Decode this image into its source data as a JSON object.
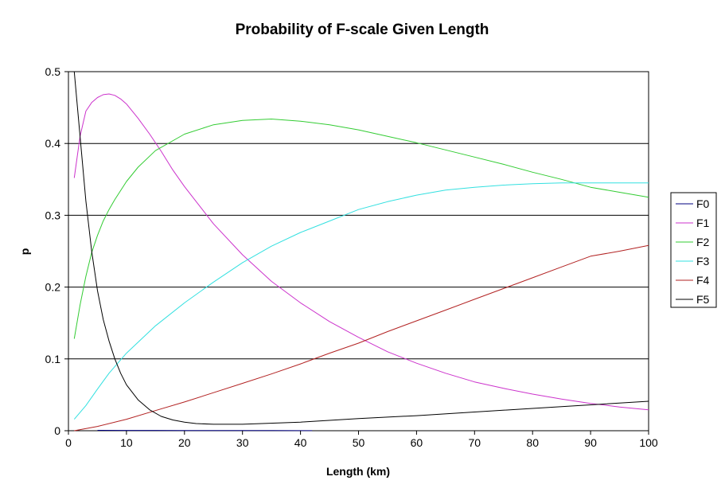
{
  "chart_data": {
    "type": "line",
    "title": "Probability of F-scale Given Length",
    "xlabel": "Length (km)",
    "ylabel": "p",
    "xlim": [
      0,
      100
    ],
    "ylim": [
      0,
      0.5
    ],
    "xticks": [
      0,
      10,
      20,
      30,
      40,
      50,
      60,
      70,
      80,
      90,
      100
    ],
    "yticks": [
      0,
      0.1,
      0.2,
      0.3,
      0.4,
      0.5
    ],
    "xtick_labels": [
      "0",
      "10",
      "20",
      "30",
      "40",
      "50",
      "60",
      "70",
      "80",
      "90",
      "100"
    ],
    "ytick_labels": [
      "0",
      "0.1",
      "0.2",
      "0.3",
      "0.4",
      "0.5"
    ],
    "grid": "horizontal",
    "legend_position": "right",
    "series": [
      {
        "name": "F0",
        "color": "#000080",
        "points": [
          [
            5,
            0.0005
          ],
          [
            10,
            0.0004
          ],
          [
            15,
            0.0004
          ],
          [
            20,
            0.0003
          ],
          [
            25,
            0.0003
          ],
          [
            30,
            0.0002
          ],
          [
            35,
            0.0002
          ],
          [
            40,
            0.0001
          ],
          [
            42,
            0.0001
          ]
        ]
      },
      {
        "name": "F1",
        "color": "#cc33cc",
        "points": [
          [
            1,
            0.352
          ],
          [
            2,
            0.41
          ],
          [
            3,
            0.445
          ],
          [
            4,
            0.457
          ],
          [
            5,
            0.464
          ],
          [
            6,
            0.468
          ],
          [
            7,
            0.469
          ],
          [
            8,
            0.467
          ],
          [
            9,
            0.462
          ],
          [
            10,
            0.455
          ],
          [
            12,
            0.435
          ],
          [
            14,
            0.413
          ],
          [
            16,
            0.389
          ],
          [
            18,
            0.363
          ],
          [
            20,
            0.34
          ],
          [
            25,
            0.288
          ],
          [
            30,
            0.245
          ],
          [
            35,
            0.208
          ],
          [
            40,
            0.178
          ],
          [
            45,
            0.152
          ],
          [
            50,
            0.13
          ],
          [
            55,
            0.11
          ],
          [
            60,
            0.094
          ],
          [
            65,
            0.08
          ],
          [
            70,
            0.068
          ],
          [
            75,
            0.059
          ],
          [
            80,
            0.051
          ],
          [
            85,
            0.044
          ],
          [
            90,
            0.038
          ],
          [
            95,
            0.033
          ],
          [
            100,
            0.029
          ]
        ]
      },
      {
        "name": "F2",
        "color": "#33cc33",
        "points": [
          [
            1,
            0.128
          ],
          [
            2,
            0.175
          ],
          [
            3,
            0.215
          ],
          [
            4,
            0.248
          ],
          [
            5,
            0.272
          ],
          [
            6,
            0.292
          ],
          [
            7,
            0.308
          ],
          [
            8,
            0.322
          ],
          [
            10,
            0.347
          ],
          [
            12,
            0.367
          ],
          [
            15,
            0.39
          ],
          [
            20,
            0.413
          ],
          [
            25,
            0.426
          ],
          [
            30,
            0.432
          ],
          [
            35,
            0.434
          ],
          [
            40,
            0.431
          ],
          [
            45,
            0.426
          ],
          [
            50,
            0.419
          ],
          [
            55,
            0.41
          ],
          [
            60,
            0.401
          ],
          [
            65,
            0.391
          ],
          [
            70,
            0.381
          ],
          [
            75,
            0.371
          ],
          [
            80,
            0.36
          ],
          [
            85,
            0.35
          ],
          [
            90,
            0.339
          ],
          [
            95,
            0.332
          ],
          [
            100,
            0.325
          ]
        ]
      },
      {
        "name": "F3",
        "color": "#33e0e0",
        "points": [
          [
            1,
            0.016
          ],
          [
            3,
            0.035
          ],
          [
            5,
            0.058
          ],
          [
            7,
            0.08
          ],
          [
            10,
            0.108
          ],
          [
            15,
            0.146
          ],
          [
            20,
            0.178
          ],
          [
            25,
            0.207
          ],
          [
            30,
            0.234
          ],
          [
            35,
            0.257
          ],
          [
            40,
            0.276
          ],
          [
            45,
            0.292
          ],
          [
            50,
            0.308
          ],
          [
            55,
            0.319
          ],
          [
            60,
            0.328
          ],
          [
            65,
            0.335
          ],
          [
            70,
            0.339
          ],
          [
            75,
            0.342
          ],
          [
            80,
            0.344
          ],
          [
            85,
            0.345
          ],
          [
            90,
            0.345
          ],
          [
            95,
            0.345
          ],
          [
            100,
            0.345
          ]
        ]
      },
      {
        "name": "F4",
        "color": "#b22222",
        "points": [
          [
            1,
            0.0
          ],
          [
            5,
            0.006
          ],
          [
            10,
            0.016
          ],
          [
            15,
            0.028
          ],
          [
            20,
            0.04
          ],
          [
            25,
            0.053
          ],
          [
            30,
            0.066
          ],
          [
            35,
            0.079
          ],
          [
            40,
            0.093
          ],
          [
            45,
            0.108
          ],
          [
            50,
            0.122
          ],
          [
            55,
            0.138
          ],
          [
            60,
            0.153
          ],
          [
            65,
            0.168
          ],
          [
            70,
            0.183
          ],
          [
            75,
            0.198
          ],
          [
            80,
            0.213
          ],
          [
            85,
            0.228
          ],
          [
            90,
            0.243
          ],
          [
            95,
            0.25
          ],
          [
            100,
            0.258
          ]
        ]
      },
      {
        "name": "F5",
        "color": "#000000",
        "points": [
          [
            1,
            0.5
          ],
          [
            2,
            0.41
          ],
          [
            3,
            0.32
          ],
          [
            4,
            0.25
          ],
          [
            5,
            0.195
          ],
          [
            6,
            0.155
          ],
          [
            7,
            0.125
          ],
          [
            8,
            0.1
          ],
          [
            9,
            0.08
          ],
          [
            10,
            0.064
          ],
          [
            12,
            0.043
          ],
          [
            14,
            0.029
          ],
          [
            16,
            0.02
          ],
          [
            18,
            0.015
          ],
          [
            20,
            0.012
          ],
          [
            22,
            0.01
          ],
          [
            25,
            0.009
          ],
          [
            30,
            0.009
          ],
          [
            40,
            0.012
          ],
          [
            50,
            0.017
          ],
          [
            60,
            0.021
          ],
          [
            70,
            0.026
          ],
          [
            80,
            0.031
          ],
          [
            90,
            0.036
          ],
          [
            100,
            0.041
          ]
        ]
      }
    ]
  }
}
